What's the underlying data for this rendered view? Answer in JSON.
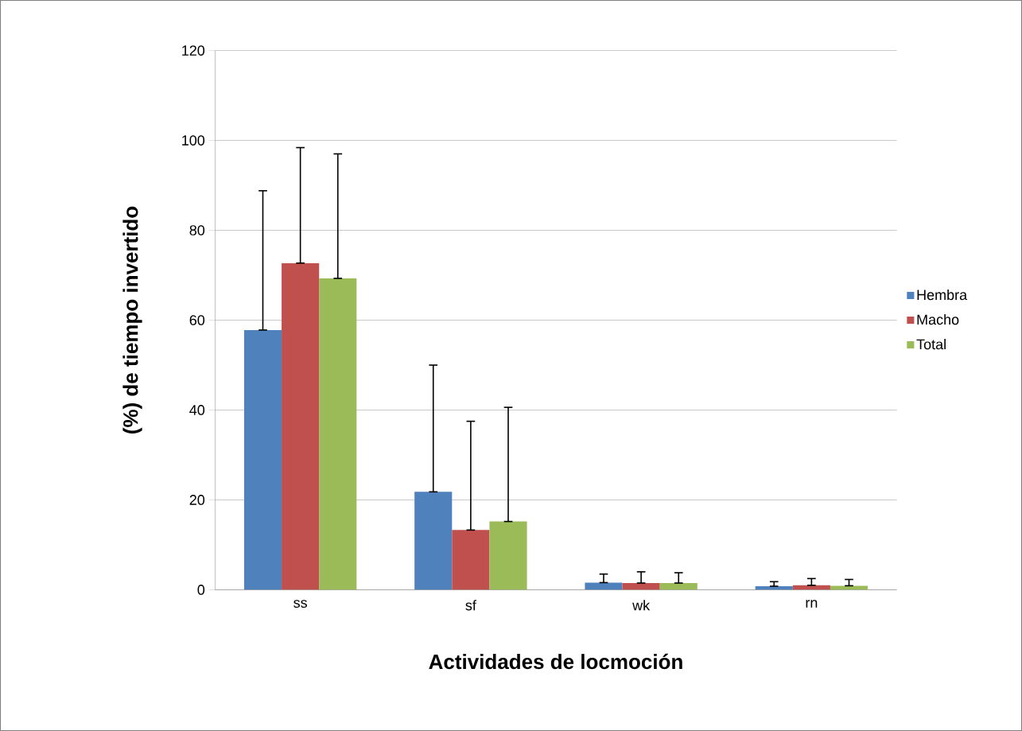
{
  "chart_data": {
    "type": "bar",
    "xlabel": "Actividades de locmoción",
    "ylabel": "(%) de tiempo invertido",
    "categories": [
      "ss",
      "sf",
      "wk",
      "rn"
    ],
    "series": [
      {
        "name": "Hembra",
        "color": "#4f81bd",
        "values": [
          57.8,
          21.8,
          1.6,
          0.8
        ],
        "errors": [
          [
            57.8,
            88.8
          ],
          [
            21.8,
            50.0
          ],
          [
            1.6,
            3.5
          ],
          [
            0.8,
            1.8
          ]
        ]
      },
      {
        "name": "Macho",
        "color": "#c0504d",
        "values": [
          72.7,
          13.3,
          1.5,
          1.0
        ],
        "errors": [
          [
            72.7,
            98.4
          ],
          [
            13.3,
            37.5
          ],
          [
            1.5,
            4.0
          ],
          [
            1.0,
            2.5
          ]
        ]
      },
      {
        "name": "Total",
        "color": "#9bbb59",
        "values": [
          69.3,
          15.2,
          1.5,
          0.9
        ],
        "errors": [
          [
            69.3,
            97.0
          ],
          [
            15.2,
            40.6
          ],
          [
            1.5,
            3.8
          ],
          [
            0.9,
            2.3
          ]
        ]
      }
    ],
    "ylim": [
      0,
      120
    ],
    "yticks": [
      0,
      20,
      40,
      60,
      80,
      100,
      120
    ],
    "grid": "y",
    "legend": "right"
  }
}
